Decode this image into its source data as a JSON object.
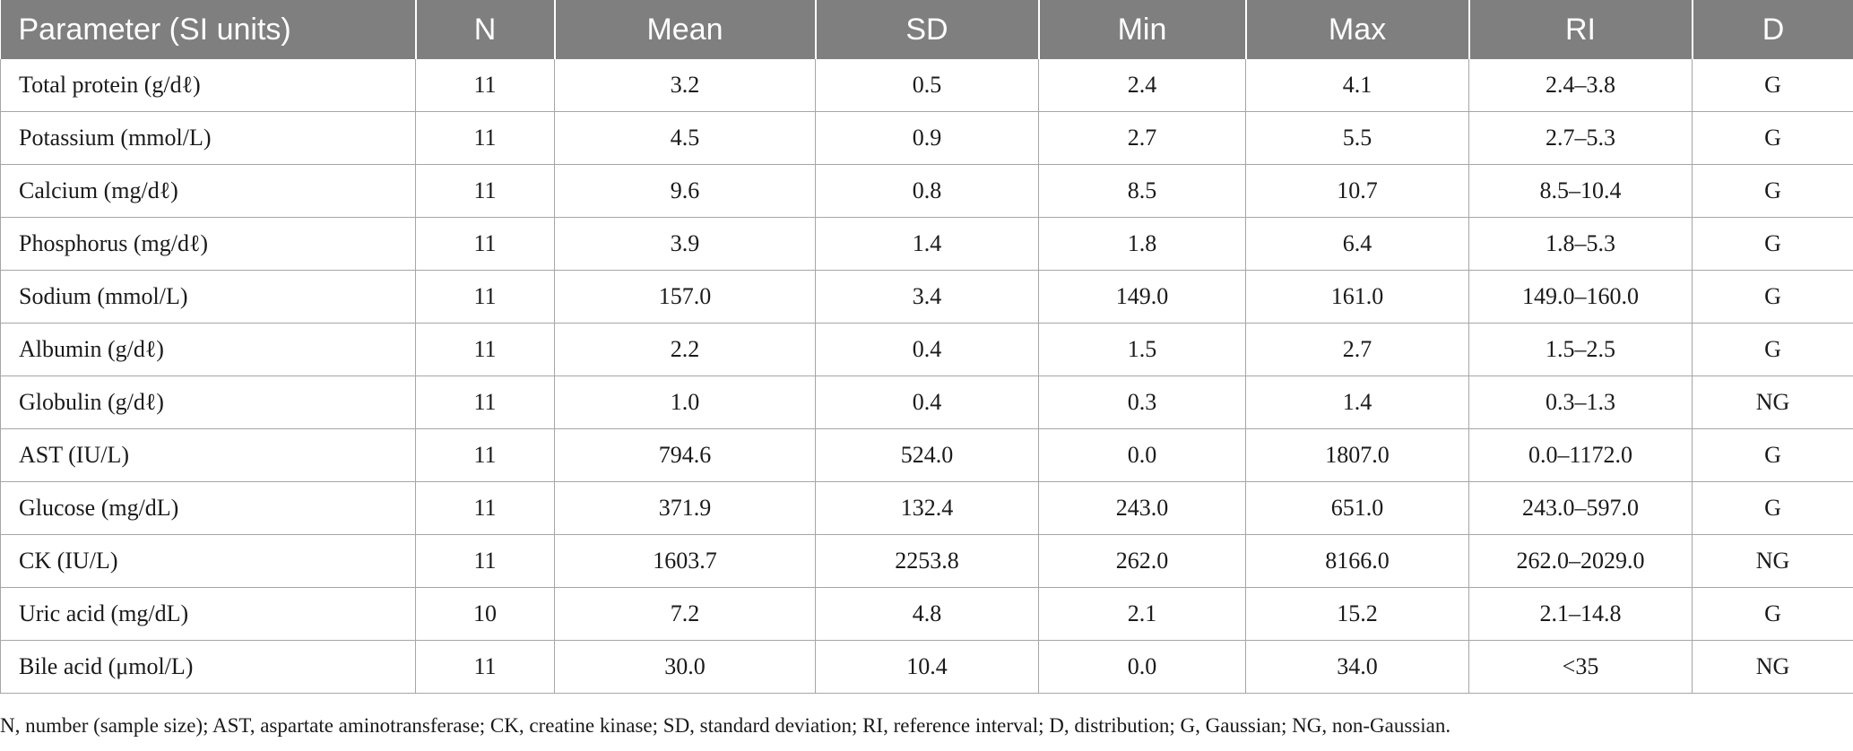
{
  "table": {
    "headers": [
      "Parameter (SI units)",
      "N",
      "Mean",
      "SD",
      "Min",
      "Max",
      "RI",
      "D"
    ],
    "rows": [
      [
        "Total protein (g/dℓ)",
        "11",
        "3.2",
        "0.5",
        "2.4",
        "4.1",
        "2.4–3.8",
        "G"
      ],
      [
        "Potassium (mmol/L)",
        "11",
        "4.5",
        "0.9",
        "2.7",
        "5.5",
        "2.7–5.3",
        "G"
      ],
      [
        "Calcium (mg/dℓ)",
        "11",
        "9.6",
        "0.8",
        "8.5",
        "10.7",
        "8.5–10.4",
        "G"
      ],
      [
        "Phosphorus (mg/dℓ)",
        "11",
        "3.9",
        "1.4",
        "1.8",
        "6.4",
        "1.8–5.3",
        "G"
      ],
      [
        "Sodium (mmol/L)",
        "11",
        "157.0",
        "3.4",
        "149.0",
        "161.0",
        "149.0–160.0",
        "G"
      ],
      [
        "Albumin (g/dℓ)",
        "11",
        "2.2",
        "0.4",
        "1.5",
        "2.7",
        "1.5–2.5",
        "G"
      ],
      [
        "Globulin (g/dℓ)",
        "11",
        "1.0",
        "0.4",
        "0.3",
        "1.4",
        "0.3–1.3",
        "NG"
      ],
      [
        "AST (IU/L)",
        "11",
        "794.6",
        "524.0",
        "0.0",
        "1807.0",
        "0.0–1172.0",
        "G"
      ],
      [
        "Glucose (mg/dL)",
        "11",
        "371.9",
        "132.4",
        "243.0",
        "651.0",
        "243.0–597.0",
        "G"
      ],
      [
        "CK (IU/L)",
        "11",
        "1603.7",
        "2253.8",
        "262.0",
        "8166.0",
        "262.0–2029.0",
        "NG"
      ],
      [
        "Uric acid (mg/dL)",
        "10",
        "7.2",
        "4.8",
        "2.1",
        "15.2",
        "2.1–14.8",
        "G"
      ],
      [
        "Bile acid (μmol/L)",
        "11",
        "30.0",
        "10.4",
        "0.0",
        "34.0",
        "<35",
        "NG"
      ]
    ]
  },
  "footnote": "N, number (sample size); AST, aspartate aminotransferase; CK, creatine kinase; SD, standard deviation; RI, reference interval; D, distribution; G, Gaussian; NG, non-Gaussian.",
  "colors": {
    "header_bg": "#7f7f7f",
    "header_text": "#ffffff",
    "grid_line": "#a6a6a6"
  }
}
